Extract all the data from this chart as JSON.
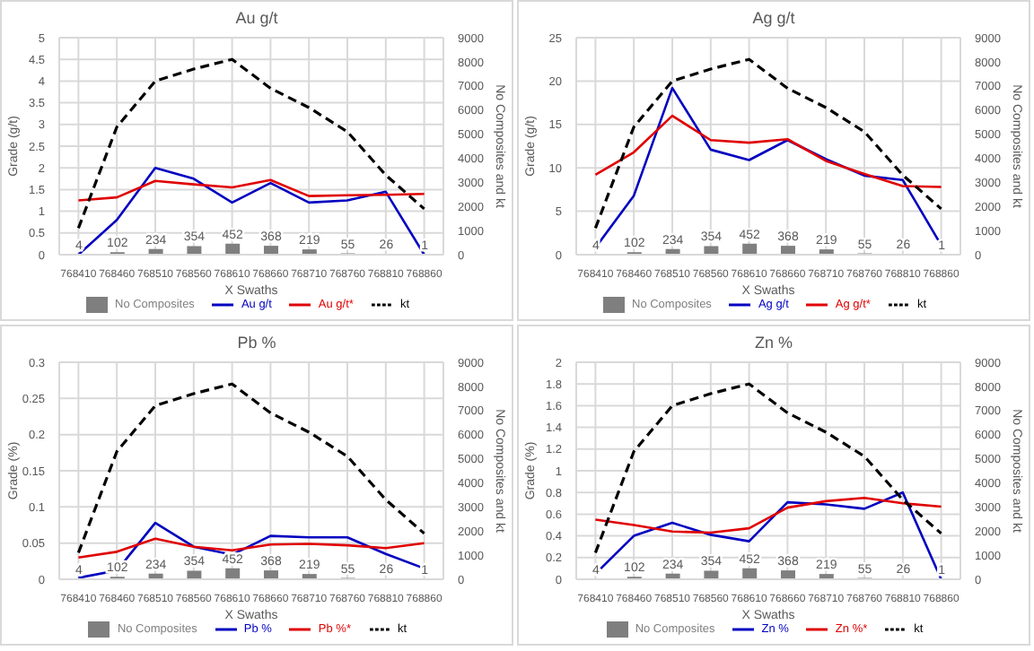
{
  "chart_data": [
    {
      "type": "bar",
      "title": "Au g/t",
      "xlabel": "X Swaths",
      "ylabel": "Grade (g/t)",
      "y2label": "No Composites and kt",
      "categories": [
        "768410",
        "768460",
        "768510",
        "768560",
        "768610",
        "768660",
        "768710",
        "768760",
        "768810",
        "768860"
      ],
      "ylim": [
        0,
        5
      ],
      "yticks": [
        0,
        0.5,
        1,
        1.5,
        2,
        2.5,
        3,
        3.5,
        4,
        4.5,
        5
      ],
      "y2lim": [
        0,
        9000
      ],
      "y2ticks": [
        0,
        1000,
        2000,
        3000,
        4000,
        5000,
        6000,
        7000,
        8000,
        9000
      ],
      "grid": true,
      "legend": "bottom",
      "marker": "none",
      "series": [
        {
          "name": "No Composites",
          "axis": "y2",
          "color": "#7f7f7f",
          "values": [
            4,
            102,
            234,
            354,
            452,
            368,
            219,
            55,
            26,
            1
          ],
          "value_labels": [
            "4",
            "102",
            "234",
            "354",
            "452",
            "368",
            "219",
            "55",
            "26",
            "1"
          ]
        },
        {
          "name": "Au g/t",
          "type": "line",
          "color": "#0000c0",
          "values": [
            0,
            0.8,
            2.0,
            1.75,
            1.2,
            1.65,
            1.2,
            1.25,
            1.45,
            0
          ]
        },
        {
          "name": "Au g/t*",
          "type": "line",
          "color": "#e00000",
          "values": [
            1.25,
            1.32,
            1.7,
            1.62,
            1.55,
            1.72,
            1.35,
            1.37,
            1.38,
            1.4
          ]
        },
        {
          "name": "kt",
          "type": "line",
          "axis": "y2",
          "color": "#000000",
          "line_style": "dashed",
          "values": [
            1100,
            5300,
            7200,
            7700,
            8100,
            6900,
            6100,
            5100,
            3300,
            1900
          ]
        }
      ]
    },
    {
      "type": "bar",
      "title": "Ag g/t",
      "xlabel": "X Swaths",
      "ylabel": "Grade (g/t)",
      "y2label": "No Composites and kt",
      "categories": [
        "768410",
        "768460",
        "768510",
        "768560",
        "768610",
        "768660",
        "768710",
        "768760",
        "768810",
        "768860"
      ],
      "ylim": [
        0,
        25
      ],
      "yticks": [
        0,
        5,
        10,
        15,
        20,
        25
      ],
      "y2lim": [
        0,
        9000
      ],
      "y2ticks": [
        0,
        1000,
        2000,
        3000,
        4000,
        5000,
        6000,
        7000,
        8000,
        9000
      ],
      "grid": true,
      "legend": "bottom",
      "marker": "none",
      "series": [
        {
          "name": "No Composites",
          "axis": "y2",
          "color": "#7f7f7f",
          "values": [
            4,
            102,
            234,
            354,
            452,
            368,
            219,
            55,
            26,
            1
          ],
          "value_labels": [
            "4",
            "102",
            "234",
            "354",
            "452",
            "368",
            "219",
            "55",
            "26",
            "1"
          ]
        },
        {
          "name": "Ag g/t",
          "type": "line",
          "color": "#0000c0",
          "values": [
            0.8,
            6.8,
            19.2,
            12.1,
            10.9,
            13.2,
            11.0,
            9.1,
            8.6,
            1.1
          ]
        },
        {
          "name": "Ag g/t*",
          "type": "line",
          "color": "#e00000",
          "values": [
            9.2,
            11.8,
            16,
            13.2,
            12.9,
            13.3,
            10.8,
            9.3,
            7.9,
            7.8
          ]
        },
        {
          "name": "kt",
          "type": "line",
          "axis": "y2",
          "color": "#000000",
          "line_style": "dashed",
          "values": [
            1100,
            5300,
            7200,
            7700,
            8100,
            6900,
            6100,
            5100,
            3300,
            1900
          ]
        }
      ]
    },
    {
      "type": "bar",
      "title": "Pb %",
      "xlabel": "X Swaths",
      "ylabel": "Grade (%)",
      "y2label": "No Composites and kt",
      "categories": [
        "768410",
        "768460",
        "768510",
        "768560",
        "768610",
        "768660",
        "768710",
        "768760",
        "768810",
        "768860"
      ],
      "ylim": [
        0,
        0.3
      ],
      "yticks": [
        0,
        0.05,
        0.1,
        0.15,
        0.2,
        0.25,
        0.3
      ],
      "y2lim": [
        0,
        9000
      ],
      "y2ticks": [
        0,
        1000,
        2000,
        3000,
        4000,
        5000,
        6000,
        7000,
        8000,
        9000
      ],
      "grid": true,
      "legend": "bottom",
      "marker": "none",
      "series": [
        {
          "name": "No Composites",
          "axis": "y2",
          "color": "#7f7f7f",
          "values": [
            4,
            102,
            234,
            354,
            452,
            368,
            219,
            55,
            26,
            1
          ],
          "value_labels": [
            "4",
            "102",
            "234",
            "354",
            "452",
            "368",
            "219",
            "55",
            "26",
            "1"
          ]
        },
        {
          "name": "Pb %",
          "type": "line",
          "color": "#0000c0",
          "values": [
            0.002,
            0.012,
            0.078,
            0.045,
            0.034,
            0.06,
            0.058,
            0.058,
            0.035,
            0.015
          ]
        },
        {
          "name": "Pb %*",
          "type": "line",
          "color": "#e00000",
          "values": [
            0.03,
            0.038,
            0.056,
            0.045,
            0.04,
            0.048,
            0.049,
            0.047,
            0.043,
            0.05
          ]
        },
        {
          "name": "kt",
          "type": "line",
          "axis": "y2",
          "color": "#000000",
          "line_style": "dashed",
          "values": [
            1100,
            5300,
            7200,
            7700,
            8100,
            6900,
            6100,
            5100,
            3300,
            1900
          ]
        }
      ]
    },
    {
      "type": "bar",
      "title": "Zn %",
      "xlabel": "X Swaths",
      "ylabel": "Grade (%)",
      "y2label": "No Composites and kt",
      "categories": [
        "768410",
        "768460",
        "768510",
        "768560",
        "768610",
        "768660",
        "768710",
        "768760",
        "768810",
        "768860"
      ],
      "ylim": [
        0,
        2
      ],
      "yticks": [
        0,
        0.2,
        0.4,
        0.6,
        0.8,
        1,
        1.2,
        1.4,
        1.6,
        1.8,
        2
      ],
      "y2lim": [
        0,
        9000
      ],
      "y2ticks": [
        0,
        1000,
        2000,
        3000,
        4000,
        5000,
        6000,
        7000,
        8000,
        9000
      ],
      "grid": true,
      "legend": "bottom",
      "marker": "none",
      "series": [
        {
          "name": "No Composites",
          "axis": "y2",
          "color": "#7f7f7f",
          "values": [
            4,
            102,
            234,
            354,
            452,
            368,
            219,
            55,
            26,
            1
          ],
          "value_labels": [
            "4",
            "102",
            "234",
            "354",
            "452",
            "368",
            "219",
            "55",
            "26",
            "1"
          ]
        },
        {
          "name": "Zn %",
          "type": "line",
          "color": "#0000c0",
          "values": [
            0.05,
            0.4,
            0.52,
            0.41,
            0.35,
            0.71,
            0.69,
            0.65,
            0.8,
            0
          ]
        },
        {
          "name": "Zn %*",
          "type": "line",
          "color": "#e00000",
          "values": [
            0.55,
            0.5,
            0.44,
            0.43,
            0.47,
            0.66,
            0.72,
            0.75,
            0.7,
            0.67
          ]
        },
        {
          "name": "kt",
          "type": "line",
          "axis": "y2",
          "color": "#000000",
          "line_style": "dashed",
          "values": [
            1100,
            5300,
            7200,
            7700,
            8100,
            6900,
            6100,
            5100,
            3300,
            1900
          ]
        }
      ]
    }
  ]
}
